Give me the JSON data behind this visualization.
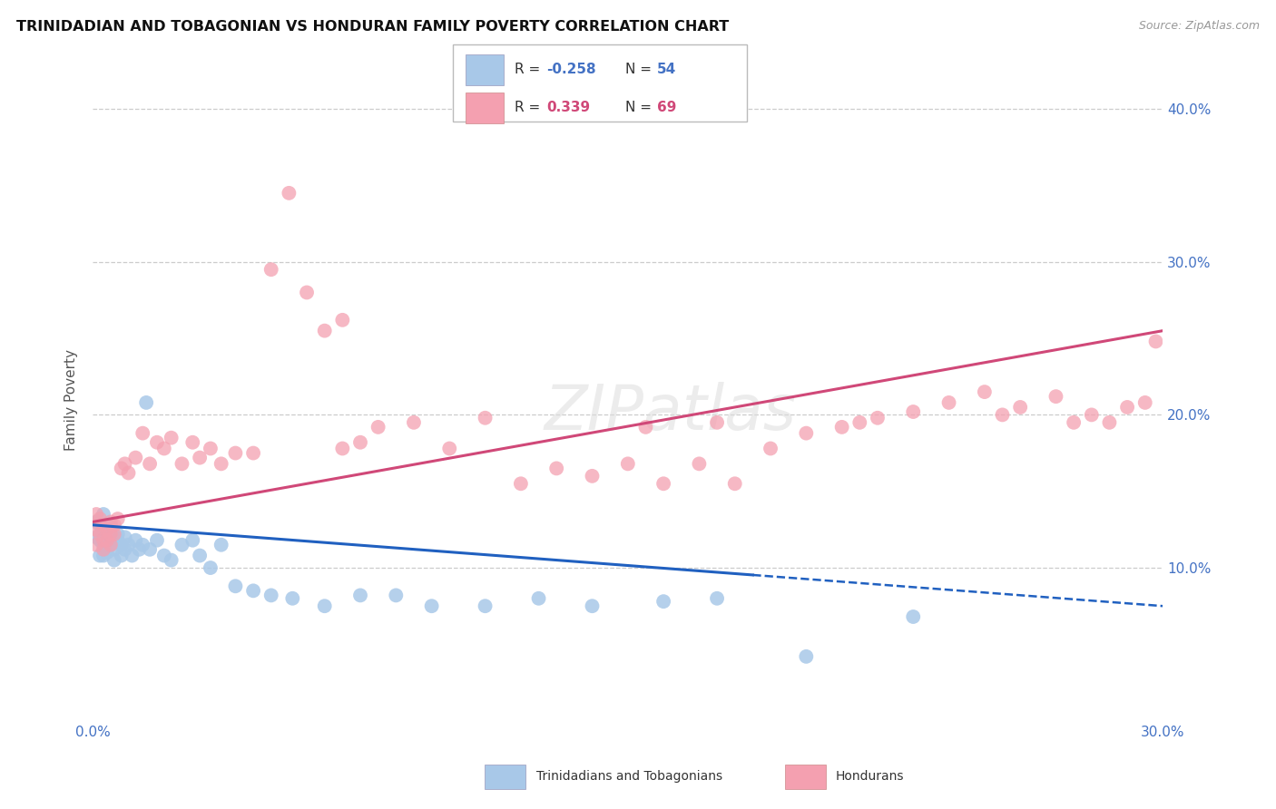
{
  "title": "TRINIDADIAN AND TOBAGONIAN VS HONDURAN FAMILY POVERTY CORRELATION CHART",
  "source": "Source: ZipAtlas.com",
  "ylabel": "Family Poverty",
  "xlim": [
    0.0,
    0.3
  ],
  "ylim": [
    0.0,
    0.42
  ],
  "yticks": [
    0.1,
    0.2,
    0.3,
    0.4
  ],
  "ytick_labels": [
    "10.0%",
    "20.0%",
    "30.0%",
    "40.0%"
  ],
  "xticks": [
    0.0,
    0.05,
    0.1,
    0.15,
    0.2,
    0.25,
    0.3
  ],
  "xtick_labels": [
    "0.0%",
    "",
    "",
    "",
    "",
    "",
    "30.0%"
  ],
  "background_color": "#ffffff",
  "color_blue": "#A8C8E8",
  "color_pink": "#F4A0B0",
  "line_color_blue": "#2060C0",
  "line_color_pink": "#D04878",
  "axis_tick_color": "#4472C4",
  "legend_R1": "-0.258",
  "legend_N1": "54",
  "legend_R2": "0.339",
  "legend_N2": "69",
  "blue_line_solid_end": 0.185,
  "blue_line_start_y": 0.128,
  "blue_line_end_y": 0.075,
  "pink_line_start_y": 0.13,
  "pink_line_end_y": 0.255,
  "blue_x": [
    0.001,
    0.001,
    0.002,
    0.002,
    0.002,
    0.003,
    0.003,
    0.003,
    0.003,
    0.004,
    0.004,
    0.004,
    0.005,
    0.005,
    0.005,
    0.006,
    0.006,
    0.006,
    0.007,
    0.007,
    0.008,
    0.008,
    0.009,
    0.009,
    0.01,
    0.011,
    0.012,
    0.013,
    0.014,
    0.015,
    0.016,
    0.018,
    0.02,
    0.022,
    0.025,
    0.028,
    0.03,
    0.033,
    0.036,
    0.04,
    0.045,
    0.05,
    0.056,
    0.065,
    0.075,
    0.085,
    0.095,
    0.11,
    0.125,
    0.14,
    0.16,
    0.175,
    0.2,
    0.23
  ],
  "blue_y": [
    0.13,
    0.12,
    0.128,
    0.118,
    0.108,
    0.135,
    0.125,
    0.115,
    0.108,
    0.125,
    0.118,
    0.11,
    0.122,
    0.115,
    0.128,
    0.12,
    0.112,
    0.105,
    0.118,
    0.122,
    0.115,
    0.108,
    0.12,
    0.112,
    0.115,
    0.108,
    0.118,
    0.112,
    0.115,
    0.208,
    0.112,
    0.118,
    0.108,
    0.105,
    0.115,
    0.118,
    0.108,
    0.1,
    0.115,
    0.088,
    0.085,
    0.082,
    0.08,
    0.075,
    0.082,
    0.082,
    0.075,
    0.075,
    0.08,
    0.075,
    0.078,
    0.08,
    0.042,
    0.068
  ],
  "pink_x": [
    0.001,
    0.001,
    0.001,
    0.002,
    0.002,
    0.003,
    0.003,
    0.003,
    0.004,
    0.004,
    0.005,
    0.005,
    0.005,
    0.006,
    0.006,
    0.007,
    0.008,
    0.009,
    0.01,
    0.012,
    0.014,
    0.016,
    0.018,
    0.02,
    0.022,
    0.025,
    0.028,
    0.03,
    0.033,
    0.036,
    0.04,
    0.045,
    0.05,
    0.055,
    0.06,
    0.065,
    0.07,
    0.075,
    0.08,
    0.09,
    0.1,
    0.11,
    0.12,
    0.13,
    0.14,
    0.15,
    0.155,
    0.16,
    0.17,
    0.175,
    0.18,
    0.19,
    0.2,
    0.21,
    0.215,
    0.22,
    0.23,
    0.24,
    0.25,
    0.255,
    0.26,
    0.27,
    0.275,
    0.28,
    0.285,
    0.29,
    0.295,
    0.298,
    0.07
  ],
  "pink_y": [
    0.135,
    0.125,
    0.115,
    0.132,
    0.122,
    0.128,
    0.118,
    0.112,
    0.125,
    0.118,
    0.122,
    0.115,
    0.13,
    0.122,
    0.128,
    0.132,
    0.165,
    0.168,
    0.162,
    0.172,
    0.188,
    0.168,
    0.182,
    0.178,
    0.185,
    0.168,
    0.182,
    0.172,
    0.178,
    0.168,
    0.175,
    0.175,
    0.295,
    0.345,
    0.28,
    0.255,
    0.262,
    0.182,
    0.192,
    0.195,
    0.178,
    0.198,
    0.155,
    0.165,
    0.16,
    0.168,
    0.192,
    0.155,
    0.168,
    0.195,
    0.155,
    0.178,
    0.188,
    0.192,
    0.195,
    0.198,
    0.202,
    0.208,
    0.215,
    0.2,
    0.205,
    0.212,
    0.195,
    0.2,
    0.195,
    0.205,
    0.208,
    0.248,
    0.178
  ]
}
